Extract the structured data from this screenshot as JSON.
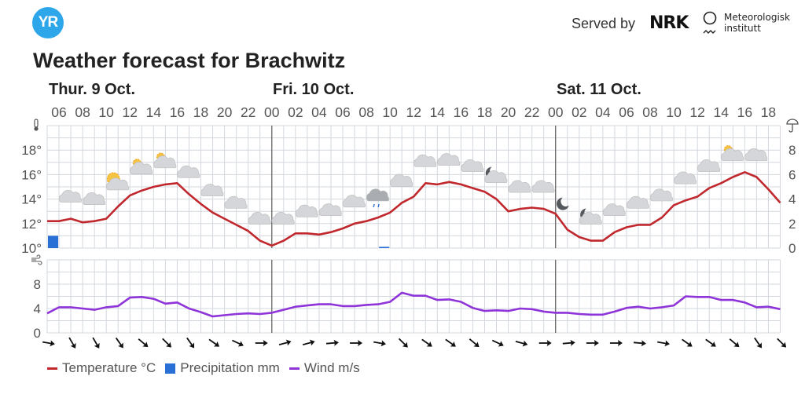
{
  "header": {
    "logo_text": "YR",
    "served_by": "Served by",
    "nrk_logo": "NRK",
    "met_line1": "Meteorologisk",
    "met_line2": "institutt",
    "title": "Weather forecast for Brachwitz"
  },
  "days": [
    {
      "label": "Thur. 9 Oct."
    },
    {
      "label": "Fri. 10 Oct."
    },
    {
      "label": "Sat. 11 Oct."
    }
  ],
  "colors": {
    "temperature": "#c0282d",
    "precipitation": "#2a6fd6",
    "wind": "#8e34d8",
    "logo": "#2ea6ea",
    "grid": "#d3d8de"
  },
  "legend": {
    "temperature": "Temperature °C",
    "precipitation": "Precipitation mm",
    "wind": "Wind m/s"
  },
  "chart_data": {
    "type": "line",
    "start": "Thu 05:00",
    "hour_labels": [
      "06",
      "08",
      "10",
      "12",
      "14",
      "16",
      "18",
      "20",
      "22",
      "00",
      "02",
      "04",
      "06",
      "08",
      "10",
      "12",
      "14",
      "16",
      "18",
      "20",
      "22",
      "00",
      "02",
      "04",
      "06",
      "08",
      "10",
      "12",
      "14",
      "16",
      "18"
    ],
    "temperature": {
      "ylim": [
        10,
        20
      ],
      "tick_labels": [
        "10°",
        "12°",
        "14°",
        "16°",
        "18°"
      ],
      "values": [
        12.2,
        12.2,
        12.4,
        12.1,
        12.2,
        12.4,
        13.4,
        14.3,
        14.7,
        15.0,
        15.2,
        15.3,
        14.4,
        13.6,
        12.9,
        12.4,
        11.9,
        11.4,
        10.6,
        10.2,
        10.6,
        11.2,
        11.2,
        11.1,
        11.3,
        11.6,
        12.0,
        12.2,
        12.5,
        12.9,
        13.7,
        14.2,
        15.3,
        15.2,
        15.4,
        15.2,
        14.9,
        14.6,
        14.0,
        13.0,
        13.2,
        13.3,
        13.2,
        12.8,
        11.5,
        10.9,
        10.6,
        10.6,
        11.3,
        11.7,
        11.9,
        11.9,
        12.5,
        13.5,
        13.9,
        14.2,
        14.9,
        15.3,
        15.8,
        16.2,
        15.8,
        14.8,
        13.7
      ]
    },
    "precipitation": {
      "ylim": [
        0,
        10
      ],
      "tick_labels": [
        "0",
        "2",
        "4",
        "6",
        "8"
      ],
      "bars": [
        {
          "hour_index": 0,
          "value": 1.0
        },
        {
          "hour_index": 28,
          "value": 0.1
        }
      ]
    },
    "wind": {
      "ylim": [
        0,
        12
      ],
      "tick_labels": [
        "0",
        "4",
        "8"
      ],
      "values": [
        3.2,
        4.2,
        4.2,
        4.0,
        3.8,
        4.2,
        4.4,
        5.8,
        5.9,
        5.6,
        4.8,
        5.0,
        4.0,
        3.4,
        2.7,
        2.9,
        3.1,
        3.2,
        3.1,
        3.3,
        3.8,
        4.3,
        4.5,
        4.7,
        4.7,
        4.4,
        4.4,
        4.6,
        4.7,
        5.1,
        6.6,
        6.1,
        6.1,
        5.4,
        5.5,
        5.1,
        4.1,
        3.6,
        3.7,
        3.6,
        4.0,
        3.9,
        3.5,
        3.3,
        3.3,
        3.1,
        3.0,
        3.0,
        3.5,
        4.1,
        4.3,
        4.0,
        4.2,
        4.5,
        6.0,
        5.9,
        5.9,
        5.4,
        5.4,
        5.0,
        4.2,
        4.3,
        3.9
      ],
      "arrow_rotation_deg": [
        10,
        60,
        60,
        55,
        40,
        45,
        55,
        35,
        25,
        0,
        -15,
        -15,
        -5,
        0,
        10,
        45,
        35,
        35,
        40,
        25,
        15,
        0,
        -5,
        0,
        0,
        5,
        10,
        35,
        35,
        40,
        55,
        45
      ]
    },
    "symbols": [
      "cloudy",
      "cloudy",
      "partly-sunny",
      "partly-sunny",
      "partly-sunny",
      "cloudy",
      "cloudy",
      "cloudy",
      "cloudy",
      "cloudy",
      "cloudy",
      "cloudy",
      "cloudy",
      "rain",
      "cloudy",
      "cloudy",
      "cloudy",
      "cloudy",
      "partly-cloudy-night",
      "cloudy",
      "cloudy",
      "clear-night",
      "partly-cloudy-night",
      "cloudy",
      "cloudy",
      "cloudy",
      "cloudy",
      "cloudy",
      "partly-sunny",
      "cloudy"
    ]
  }
}
